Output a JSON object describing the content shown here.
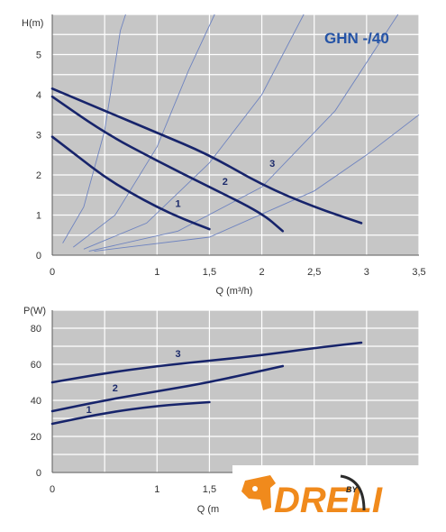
{
  "chart_data": [
    {
      "type": "line",
      "title": "GHN -/40",
      "ylabel": "H(m)",
      "xlabel": "Q (m³/h)",
      "xlim": [
        0,
        3.5
      ],
      "ylim": [
        0,
        6
      ],
      "xticks": [
        "0",
        "1",
        "1,5",
        "2",
        "2,5",
        "3",
        "3,5"
      ],
      "xtick_values": [
        0,
        1,
        1.5,
        2,
        2.5,
        3,
        3.5
      ],
      "yticks": [
        "0",
        "1",
        "2",
        "3",
        "4",
        "5"
      ],
      "ytick_values": [
        0,
        1,
        2,
        3,
        4,
        5
      ],
      "grid": true,
      "series": [
        {
          "name": "1",
          "points": [
            [
              0,
              2.95
            ],
            [
              0.25,
              2.45
            ],
            [
              0.5,
              1.95
            ],
            [
              0.75,
              1.55
            ],
            [
              1,
              1.2
            ],
            [
              1.25,
              0.9
            ],
            [
              1.5,
              0.65
            ]
          ]
        },
        {
          "name": "2",
          "points": [
            [
              0,
              3.95
            ],
            [
              0.5,
              3.05
            ],
            [
              1,
              2.35
            ],
            [
              1.5,
              1.7
            ],
            [
              2,
              1.05
            ],
            [
              2.2,
              0.6
            ]
          ]
        },
        {
          "name": "3",
          "points": [
            [
              0,
              4.15
            ],
            [
              0.5,
              3.6
            ],
            [
              1,
              3.05
            ],
            [
              1.5,
              2.5
            ],
            [
              2,
              1.75
            ],
            [
              2.5,
              1.2
            ],
            [
              2.95,
              0.8
            ]
          ]
        }
      ],
      "reference_curves": [
        {
          "points": [
            [
              0.1,
              0.3
            ],
            [
              0.3,
              1.2
            ],
            [
              0.5,
              3.1
            ],
            [
              0.65,
              5.6
            ],
            [
              0.7,
              6.0
            ]
          ]
        },
        {
          "points": [
            [
              0.2,
              0.2
            ],
            [
              0.6,
              1.0
            ],
            [
              1.0,
              2.7
            ],
            [
              1.3,
              4.6
            ],
            [
              1.55,
              6.0
            ]
          ]
        },
        {
          "points": [
            [
              0.3,
              0.15
            ],
            [
              0.9,
              0.8
            ],
            [
              1.5,
              2.3
            ],
            [
              2.0,
              4.0
            ],
            [
              2.4,
              6.0
            ]
          ]
        },
        {
          "points": [
            [
              0.35,
              0.1
            ],
            [
              1.2,
              0.6
            ],
            [
              2.0,
              1.7
            ],
            [
              2.7,
              3.6
            ],
            [
              3.3,
              6.0
            ]
          ]
        },
        {
          "points": [
            [
              0.4,
              0.1
            ],
            [
              1.5,
              0.45
            ],
            [
              2.5,
              1.6
            ],
            [
              3.0,
              2.5
            ],
            [
              3.5,
              3.5
            ]
          ]
        }
      ],
      "curve_labels": [
        {
          "text": "1",
          "x": 1.2,
          "y": 1.2
        },
        {
          "text": "2",
          "x": 1.65,
          "y": 1.75
        },
        {
          "text": "3",
          "x": 2.1,
          "y": 2.2
        }
      ]
    },
    {
      "type": "line",
      "ylabel": "P(W)",
      "xlabel": "Q (m",
      "xlim": [
        0,
        3.5
      ],
      "ylim": [
        0,
        90
      ],
      "xticks": [
        "0",
        "1",
        "1,5"
      ],
      "xtick_values": [
        0,
        1,
        1.5
      ],
      "yticks": [
        "0",
        "20",
        "40",
        "60",
        "80"
      ],
      "ytick_values": [
        0,
        20,
        40,
        60,
        80
      ],
      "grid": true,
      "series": [
        {
          "name": "1",
          "points": [
            [
              0,
              27
            ],
            [
              0.5,
              33
            ],
            [
              1,
              37
            ],
            [
              1.5,
              39
            ]
          ]
        },
        {
          "name": "2",
          "points": [
            [
              0,
              34
            ],
            [
              0.5,
              40
            ],
            [
              1,
              45
            ],
            [
              1.5,
              50
            ],
            [
              2.2,
              59
            ]
          ]
        },
        {
          "name": "3",
          "points": [
            [
              0,
              50
            ],
            [
              0.5,
              55
            ],
            [
              1,
              59
            ],
            [
              1.5,
              62
            ],
            [
              2,
              65
            ],
            [
              2.5,
              69
            ],
            [
              2.95,
              72
            ]
          ]
        }
      ],
      "curve_labels": [
        {
          "text": "1",
          "x": 0.35,
          "y": 33
        },
        {
          "text": "2",
          "x": 0.6,
          "y": 45
        },
        {
          "text": "3",
          "x": 1.2,
          "y": 64
        }
      ]
    }
  ],
  "watermark": {
    "logo_text": "DRELI",
    "by_text": "BY"
  },
  "colors": {
    "plot_bg": "#c6c6c6",
    "grid": "#ffffff",
    "main_curve": "#17246b",
    "ref_curve": "#6f84c0",
    "title": "#2453a6",
    "logo_orange": "#f08a1c",
    "logo_dark": "#2b2b2b"
  }
}
